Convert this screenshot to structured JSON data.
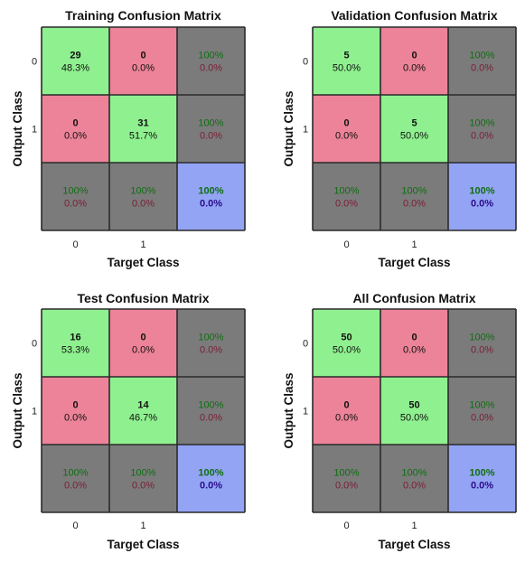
{
  "chart_data": [
    {
      "type": "heatmap",
      "title": "Training Confusion Matrix",
      "xlabel": "Target Class",
      "ylabel": "Output Class",
      "classes": [
        "0",
        "1"
      ],
      "matrix": [
        [
          {
            "count": "29",
            "percent": "48.3%"
          },
          {
            "count": "0",
            "percent": "0.0%"
          }
        ],
        [
          {
            "count": "0",
            "percent": "0.0%"
          },
          {
            "count": "31",
            "percent": "51.7%"
          }
        ]
      ],
      "row_summary": [
        {
          "correct": "100%",
          "error": "0.0%"
        },
        {
          "correct": "100%",
          "error": "0.0%"
        }
      ],
      "col_summary": [
        {
          "correct": "100%",
          "error": "0.0%"
        },
        {
          "correct": "100%",
          "error": "0.0%"
        }
      ],
      "overall": {
        "correct": "100%",
        "error": "0.0%"
      }
    },
    {
      "type": "heatmap",
      "title": "Validation Confusion Matrix",
      "xlabel": "Target Class",
      "ylabel": "Output Class",
      "classes": [
        "0",
        "1"
      ],
      "matrix": [
        [
          {
            "count": "5",
            "percent": "50.0%"
          },
          {
            "count": "0",
            "percent": "0.0%"
          }
        ],
        [
          {
            "count": "0",
            "percent": "0.0%"
          },
          {
            "count": "5",
            "percent": "50.0%"
          }
        ]
      ],
      "row_summary": [
        {
          "correct": "100%",
          "error": "0.0%"
        },
        {
          "correct": "100%",
          "error": "0.0%"
        }
      ],
      "col_summary": [
        {
          "correct": "100%",
          "error": "0.0%"
        },
        {
          "correct": "100%",
          "error": "0.0%"
        }
      ],
      "overall": {
        "correct": "100%",
        "error": "0.0%"
      }
    },
    {
      "type": "heatmap",
      "title": "Test Confusion Matrix",
      "xlabel": "Target Class",
      "ylabel": "Output Class",
      "classes": [
        "0",
        "1"
      ],
      "matrix": [
        [
          {
            "count": "16",
            "percent": "53.3%"
          },
          {
            "count": "0",
            "percent": "0.0%"
          }
        ],
        [
          {
            "count": "0",
            "percent": "0.0%"
          },
          {
            "count": "14",
            "percent": "46.7%"
          }
        ]
      ],
      "row_summary": [
        {
          "correct": "100%",
          "error": "0.0%"
        },
        {
          "correct": "100%",
          "error": "0.0%"
        }
      ],
      "col_summary": [
        {
          "correct": "100%",
          "error": "0.0%"
        },
        {
          "correct": "100%",
          "error": "0.0%"
        }
      ],
      "overall": {
        "correct": "100%",
        "error": "0.0%"
      }
    },
    {
      "type": "heatmap",
      "title": "All Confusion Matrix",
      "xlabel": "Target Class",
      "ylabel": "Output Class",
      "classes": [
        "0",
        "1"
      ],
      "matrix": [
        [
          {
            "count": "50",
            "percent": "50.0%"
          },
          {
            "count": "0",
            "percent": "0.0%"
          }
        ],
        [
          {
            "count": "0",
            "percent": "0.0%"
          },
          {
            "count": "50",
            "percent": "50.0%"
          }
        ]
      ],
      "row_summary": [
        {
          "correct": "100%",
          "error": "0.0%"
        },
        {
          "correct": "100%",
          "error": "0.0%"
        }
      ],
      "col_summary": [
        {
          "correct": "100%",
          "error": "0.0%"
        },
        {
          "correct": "100%",
          "error": "0.0%"
        }
      ],
      "overall": {
        "correct": "100%",
        "error": "0.0%"
      }
    }
  ],
  "colors": {
    "correct_cell": "#8ff08f",
    "incorrect_cell": "#ec8398",
    "summary_cell": "#7b7b7b",
    "overall_cell": "#94a4f4",
    "grid_line": "#2a2a2a",
    "summary_correct_text": "#0e6e10",
    "summary_error_text": "#7a1e36",
    "overall_correct_text": "#0e6e10",
    "overall_error_text": "#2a0c8c",
    "cell_text": "#111111"
  }
}
